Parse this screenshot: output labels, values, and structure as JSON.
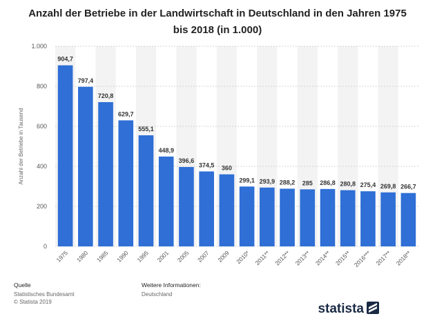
{
  "chart_data": {
    "type": "bar",
    "title": "Anzahl der Betriebe in der Landwirtschaft in Deutschland in den Jahren 1975 bis 2018 (in 1.000)",
    "y_label": "Anzahl der Betriebe in Tausend",
    "categories": [
      "1975",
      "1980",
      "1985",
      "1990",
      "1995",
      "2001",
      "2005",
      "2007",
      "2009",
      "2010*",
      "2011**",
      "2012**",
      "2013**",
      "2014**",
      "2015**",
      "2016***",
      "2017**",
      "2018**"
    ],
    "values": [
      904.7,
      797.4,
      720.8,
      629.7,
      555.1,
      448.9,
      396.6,
      374.5,
      360,
      299.1,
      293.9,
      288.2,
      285,
      286.8,
      280.8,
      275.4,
      269.8,
      266.7
    ],
    "value_labels": [
      "904,7",
      "797,4",
      "720,8",
      "629,7",
      "555,1",
      "448,9",
      "396,6",
      "374,5",
      "360",
      "299,1",
      "293,9",
      "288,2",
      "285",
      "286,8",
      "280,8",
      "275,4",
      "269,8",
      "266,7"
    ],
    "color": "#2f6fd6",
    "ylim": [
      0,
      1000
    ],
    "yticks": [
      0,
      200,
      400,
      600,
      800,
      {
        "value": 1000,
        "label": "1.000"
      }
    ],
    "grid": true
  },
  "footer": {
    "source_heading": "Quelle",
    "source": "Statistisches Bundesamt",
    "copyright": "© Statista 2019",
    "info_heading": "Weitere Informationen:",
    "info": "Deutschland",
    "logo": "statista"
  }
}
